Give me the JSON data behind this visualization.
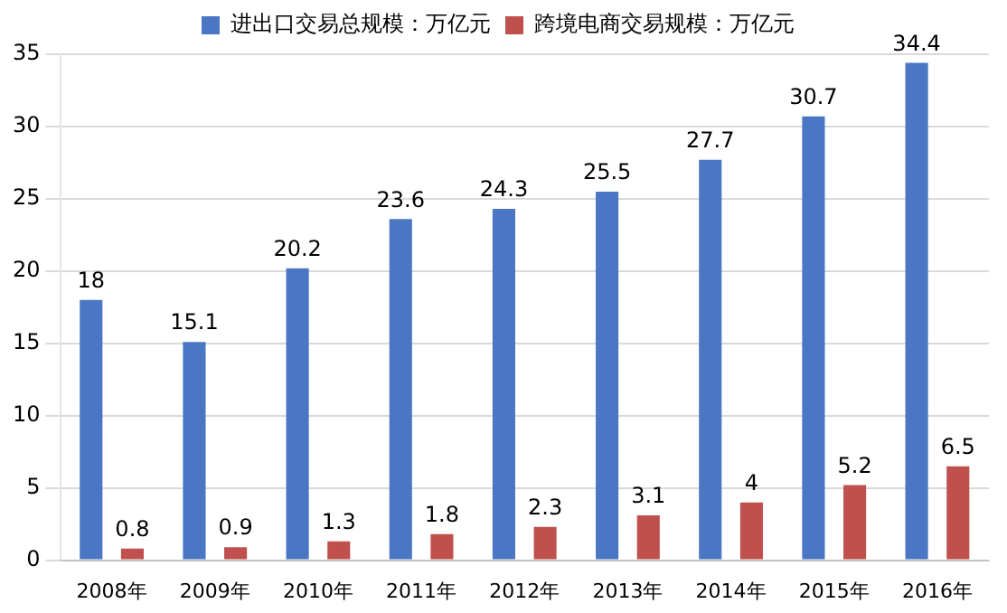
{
  "chart_data": {
    "type": "bar",
    "categories": [
      "2008年",
      "2009年",
      "2010年",
      "2011年",
      "2012年",
      "2013年",
      "2014年",
      "2015年",
      "2016年"
    ],
    "series": [
      {
        "name": "进出口交易总规模：万亿元",
        "color": "#4a76c4",
        "values": [
          18,
          15.1,
          20.2,
          23.6,
          24.3,
          25.5,
          27.7,
          30.7,
          34.4
        ]
      },
      {
        "name": "跨境电商交易规模：万亿元",
        "color": "#c0504d",
        "values": [
          0.8,
          0.9,
          1.3,
          1.8,
          2.3,
          3.1,
          4,
          5.2,
          6.5
        ]
      }
    ],
    "ylim": [
      0,
      35
    ],
    "yticks": [
      0,
      5,
      10,
      15,
      20,
      25,
      30,
      35
    ],
    "grid": "y",
    "legend": "top",
    "data_labels": true
  }
}
